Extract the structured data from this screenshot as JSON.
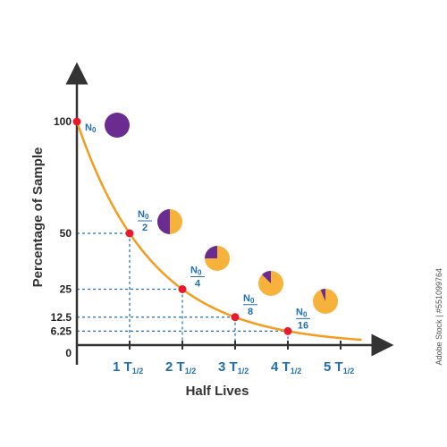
{
  "chart_data": {
    "type": "line",
    "xlabel": "Half Lives",
    "ylabel": "Percentage of Sample",
    "x_ticks": [
      {
        "value": 1,
        "number": "1",
        "unit": "T",
        "sub": "1/2"
      },
      {
        "value": 2,
        "number": "2",
        "unit": "T",
        "sub": "1/2"
      },
      {
        "value": 3,
        "number": "3",
        "unit": "T",
        "sub": "1/2"
      },
      {
        "value": 4,
        "number": "4",
        "unit": "T",
        "sub": "1/2"
      },
      {
        "value": 5,
        "number": "5",
        "unit": "T",
        "sub": "1/2"
      }
    ],
    "y_ticks": [
      {
        "value": 100,
        "label": "100"
      },
      {
        "value": 50,
        "label": "50"
      },
      {
        "value": 25,
        "label": "25"
      },
      {
        "value": 12.5,
        "label": "12.5"
      },
      {
        "value": 6.25,
        "label": "6.25"
      },
      {
        "value": 0,
        "label": "0"
      }
    ],
    "points": [
      {
        "x": 0,
        "y": 100
      },
      {
        "x": 1,
        "y": 50
      },
      {
        "x": 2,
        "y": 25
      },
      {
        "x": 3,
        "y": 12.5
      },
      {
        "x": 4,
        "y": 6.25
      }
    ],
    "point_labels": [
      {
        "x": 0,
        "num": "N",
        "sub": "0",
        "den": ""
      },
      {
        "x": 1,
        "num": "N",
        "sub": "0",
        "den": "2"
      },
      {
        "x": 2,
        "num": "N",
        "sub": "0",
        "den": "4"
      },
      {
        "x": 3,
        "num": "N",
        "sub": "0",
        "den": "8"
      },
      {
        "x": 4,
        "num": "N",
        "sub": "0",
        "den": "16"
      }
    ],
    "pie_fractions_remaining": [
      1,
      0.5,
      0.25,
      0.125,
      0.0625
    ],
    "x_range": [
      0,
      5.4
    ],
    "y_range": [
      0,
      100
    ],
    "colors": {
      "curve": "#f39c1f",
      "point": "#e8192c",
      "remaining": "#6a2c91",
      "decayed": "#f7b23b",
      "axis": "#333333",
      "guide": "#1f6fb2"
    }
  },
  "watermark": "Adobe Stock | #551099764"
}
